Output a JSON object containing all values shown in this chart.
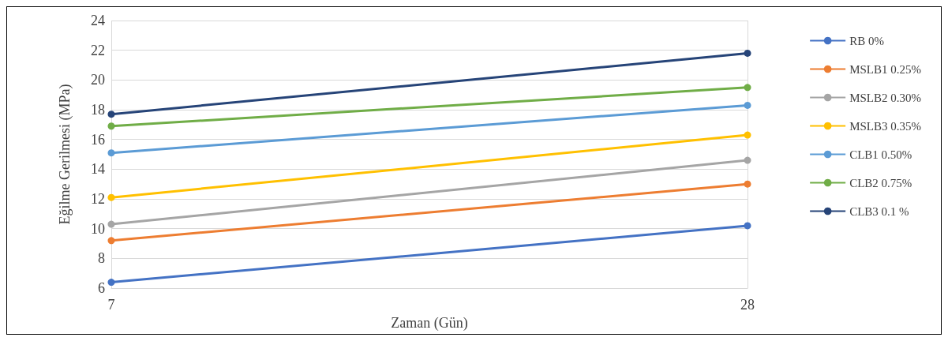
{
  "chart_data": {
    "type": "line",
    "xlabel": "Zaman (Gün)",
    "ylabel": "Eğilme Gerilmesi (MPa)",
    "x": [
      7,
      28
    ],
    "xlim": [
      7,
      28
    ],
    "xticks": [
      7,
      28
    ],
    "series": [
      {
        "name": "RB 0%",
        "color": "#4472c4",
        "values": [
          6.4,
          10.2
        ]
      },
      {
        "name": "MSLB1 0.25%",
        "color": "#ed7d31",
        "values": [
          9.2,
          13.0
        ]
      },
      {
        "name": "MSLB2 0.30%",
        "color": "#a5a5a5",
        "values": [
          10.3,
          14.6
        ]
      },
      {
        "name": "MSLB3 0.35%",
        "color": "#ffc000",
        "values": [
          12.1,
          16.3
        ]
      },
      {
        "name": "CLB1 0.50%",
        "color": "#5b9bd5",
        "values": [
          15.1,
          18.3
        ]
      },
      {
        "name": "CLB2 0.75%",
        "color": "#70ad47",
        "values": [
          16.9,
          19.5
        ]
      },
      {
        "name": "CLB3 0.1 %",
        "color": "#264478",
        "values": [
          17.7,
          21.8
        ]
      }
    ],
    "ylim": [
      6,
      24
    ],
    "yticks": [
      6,
      8,
      10,
      12,
      14,
      16,
      18,
      20,
      22,
      24
    ],
    "grid": true,
    "legend": "right",
    "marker": "circle",
    "line_style": "solid"
  }
}
